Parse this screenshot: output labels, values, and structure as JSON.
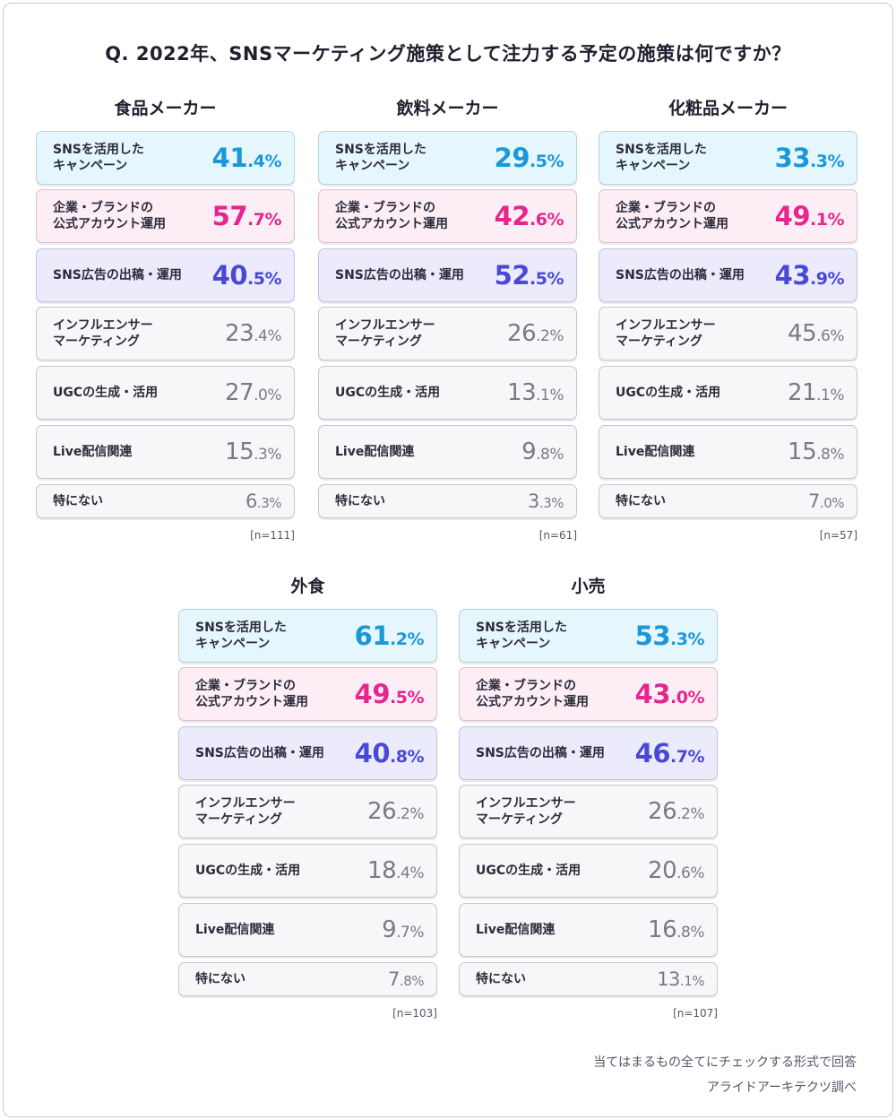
{
  "title": "Q. 2022年、SNSマーケティング施策として注力する予定の施策は何ですか？",
  "chart_data": [
    {
      "type": "table",
      "title": "食品メーカー",
      "n": "[n=111]",
      "items": [
        {
          "label": "SNSを活用した\nキャンペーン",
          "int": "41",
          "dec": ".4%",
          "value": 41.4
        },
        {
          "label": "企業・ブランドの\n公式アカウント運用",
          "int": "57",
          "dec": ".7%",
          "value": 57.7
        },
        {
          "label": "SNS広告の出稿・運用",
          "int": "40",
          "dec": ".5%",
          "value": 40.5
        },
        {
          "label": "インフルエンサー\nマーケティング",
          "int": "23",
          "dec": ".4%",
          "value": 23.4
        },
        {
          "label": "UGCの生成・活用",
          "int": "27",
          "dec": ".0%",
          "value": 27.0
        },
        {
          "label": "Live配信関連",
          "int": "15",
          "dec": ".3%",
          "value": 15.3
        },
        {
          "label": "特にない",
          "int": "6",
          "dec": ".3%",
          "value": 6.3
        }
      ]
    },
    {
      "type": "table",
      "title": "飲料メーカー",
      "n": "[n=61]",
      "items": [
        {
          "label": "SNSを活用した\nキャンペーン",
          "int": "29",
          "dec": ".5%",
          "value": 29.5
        },
        {
          "label": "企業・ブランドの\n公式アカウント運用",
          "int": "42",
          "dec": ".6%",
          "value": 42.6
        },
        {
          "label": "SNS広告の出稿・運用",
          "int": "52",
          "dec": ".5%",
          "value": 52.5
        },
        {
          "label": "インフルエンサー\nマーケティング",
          "int": "26",
          "dec": ".2%",
          "value": 26.2
        },
        {
          "label": "UGCの生成・活用",
          "int": "13",
          "dec": ".1%",
          "value": 13.1
        },
        {
          "label": "Live配信関連",
          "int": "9",
          "dec": ".8%",
          "value": 9.8
        },
        {
          "label": "特にない",
          "int": "3",
          "dec": ".3%",
          "value": 3.3
        }
      ]
    },
    {
      "type": "table",
      "title": "化粧品メーカー",
      "n": "[n=57]",
      "items": [
        {
          "label": "SNSを活用した\nキャンペーン",
          "int": "33",
          "dec": ".3%",
          "value": 33.3
        },
        {
          "label": "企業・ブランドの\n公式アカウント運用",
          "int": "49",
          "dec": ".1%",
          "value": 49.1
        },
        {
          "label": "SNS広告の出稿・運用",
          "int": "43",
          "dec": ".9%",
          "value": 43.9
        },
        {
          "label": "インフルエンサー\nマーケティング",
          "int": "45",
          "dec": ".6%",
          "value": 45.6
        },
        {
          "label": "UGCの生成・活用",
          "int": "21",
          "dec": ".1%",
          "value": 21.1
        },
        {
          "label": "Live配信関連",
          "int": "15",
          "dec": ".8%",
          "value": 15.8
        },
        {
          "label": "特にない",
          "int": "7",
          "dec": ".0%",
          "value": 7.0
        }
      ]
    },
    {
      "type": "table",
      "title": "外食",
      "n": "[n=103]",
      "items": [
        {
          "label": "SNSを活用した\nキャンペーン",
          "int": "61",
          "dec": ".2%",
          "value": 61.2
        },
        {
          "label": "企業・ブランドの\n公式アカウント運用",
          "int": "49",
          "dec": ".5%",
          "value": 49.5
        },
        {
          "label": "SNS広告の出稿・運用",
          "int": "40",
          "dec": ".8%",
          "value": 40.8
        },
        {
          "label": "インフルエンサー\nマーケティング",
          "int": "26",
          "dec": ".2%",
          "value": 26.2
        },
        {
          "label": "UGCの生成・活用",
          "int": "18",
          "dec": ".4%",
          "value": 18.4
        },
        {
          "label": "Live配信関連",
          "int": "9",
          "dec": ".7%",
          "value": 9.7
        },
        {
          "label": "特にない",
          "int": "7",
          "dec": ".8%",
          "value": 7.8
        }
      ]
    },
    {
      "type": "table",
      "title": "小売",
      "n": "[n=107]",
      "items": [
        {
          "label": "SNSを活用した\nキャンペーン",
          "int": "53",
          "dec": ".3%",
          "value": 53.3
        },
        {
          "label": "企業・ブランドの\n公式アカウント運用",
          "int": "43",
          "dec": ".0%",
          "value": 43.0
        },
        {
          "label": "SNS広告の出稿・運用",
          "int": "46",
          "dec": ".7%",
          "value": 46.7
        },
        {
          "label": "インフルエンサー\nマーケティング",
          "int": "26",
          "dec": ".2%",
          "value": 26.2
        },
        {
          "label": "UGCの生成・活用",
          "int": "20",
          "dec": ".6%",
          "value": 20.6
        },
        {
          "label": "Live配信関連",
          "int": "16",
          "dec": ".8%",
          "value": 16.8
        },
        {
          "label": "特にない",
          "int": "13",
          "dec": ".1%",
          "value": 13.1
        }
      ]
    }
  ],
  "colors": {
    "campaign": "#1a98d8",
    "official_account": "#e4268e",
    "sns_ads": "#4a49d6",
    "other": "#7a7a88"
  },
  "footer": {
    "note": "当てはまるもの全てにチェックする形式で回答",
    "source": "アライドアーキテクツ調べ"
  }
}
